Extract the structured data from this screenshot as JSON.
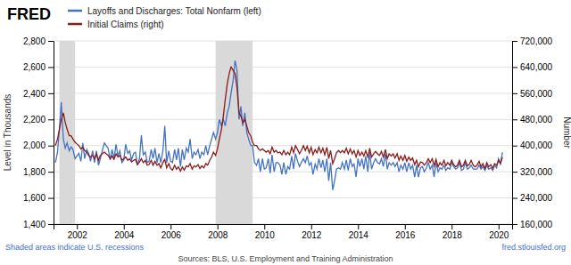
{
  "chart_data": {
    "type": "line",
    "title": "FRED",
    "ylabel": "Level in Thousands",
    "y2label": "Number",
    "xlim": [
      2001.0,
      2020.58
    ],
    "xticks": [
      2002,
      2004,
      2006,
      2008,
      2010,
      2012,
      2014,
      2016,
      2018,
      2020
    ],
    "ylim": [
      1400,
      2800
    ],
    "yticks": [
      {
        "value": 1400,
        "label": "1,400"
      },
      {
        "value": 1600,
        "label": "1,600"
      },
      {
        "value": 1800,
        "label": "1,800"
      },
      {
        "value": 2000,
        "label": "2,000"
      },
      {
        "value": 2200,
        "label": "2,200"
      },
      {
        "value": 2400,
        "label": "2,400"
      },
      {
        "value": 2600,
        "label": "2,600"
      },
      {
        "value": 2800,
        "label": "2,800"
      }
    ],
    "y2lim": [
      160000,
      720000
    ],
    "y2ticks": [
      {
        "value": 160000,
        "label": "160,000"
      },
      {
        "value": 240000,
        "label": "240,000"
      },
      {
        "value": 320000,
        "label": "320,000"
      },
      {
        "value": 400000,
        "label": "400,000"
      },
      {
        "value": 480000,
        "label": "480,000"
      },
      {
        "value": 560000,
        "label": "560,000"
      },
      {
        "value": 640000,
        "label": "640,000"
      },
      {
        "value": 720000,
        "label": "720,000"
      }
    ],
    "grid": true,
    "legend": "top-left",
    "shaded_periods": [
      [
        2001.25,
        2001.92
      ],
      [
        2007.92,
        2009.5
      ]
    ],
    "annotations": [
      "Shaded areas indicate U.S. recessions",
      "Sources: BLS, U.S. Employment and Training Administration",
      "fred.stlouisfed.org"
    ],
    "x": [
      2001.08,
      2001.17,
      2001.25,
      2001.33,
      2001.42,
      2001.5,
      2001.58,
      2001.67,
      2001.75,
      2001.83,
      2001.92,
      2002.0,
      2002.08,
      2002.17,
      2002.25,
      2002.33,
      2002.42,
      2002.5,
      2002.58,
      2002.67,
      2002.75,
      2002.83,
      2002.92,
      2003.0,
      2003.08,
      2003.17,
      2003.25,
      2003.33,
      2003.42,
      2003.5,
      2003.58,
      2003.67,
      2003.75,
      2003.83,
      2003.92,
      2004.0,
      2004.08,
      2004.17,
      2004.25,
      2004.33,
      2004.42,
      2004.5,
      2004.58,
      2004.67,
      2004.75,
      2004.83,
      2004.92,
      2005.0,
      2005.08,
      2005.17,
      2005.25,
      2005.33,
      2005.42,
      2005.5,
      2005.58,
      2005.67,
      2005.75,
      2005.83,
      2005.92,
      2006.0,
      2006.08,
      2006.17,
      2006.25,
      2006.33,
      2006.42,
      2006.5,
      2006.58,
      2006.67,
      2006.75,
      2006.83,
      2006.92,
      2007.0,
      2007.08,
      2007.17,
      2007.25,
      2007.33,
      2007.42,
      2007.5,
      2007.58,
      2007.67,
      2007.75,
      2007.83,
      2007.92,
      2008.0,
      2008.08,
      2008.17,
      2008.25,
      2008.33,
      2008.42,
      2008.5,
      2008.58,
      2008.67,
      2008.75,
      2008.83,
      2008.92,
      2009.0,
      2009.08,
      2009.17,
      2009.25,
      2009.33,
      2009.42,
      2009.5,
      2009.58,
      2009.67,
      2009.75,
      2009.83,
      2009.92,
      2010.0,
      2010.08,
      2010.17,
      2010.25,
      2010.33,
      2010.42,
      2010.5,
      2010.58,
      2010.67,
      2010.75,
      2010.83,
      2010.92,
      2011.0,
      2011.08,
      2011.17,
      2011.25,
      2011.33,
      2011.42,
      2011.5,
      2011.58,
      2011.67,
      2011.75,
      2011.83,
      2011.92,
      2012.0,
      2012.08,
      2012.17,
      2012.25,
      2012.33,
      2012.42,
      2012.5,
      2012.58,
      2012.67,
      2012.75,
      2012.83,
      2012.92,
      2013.0,
      2013.08,
      2013.17,
      2013.25,
      2013.33,
      2013.42,
      2013.5,
      2013.58,
      2013.67,
      2013.75,
      2013.83,
      2013.92,
      2014.0,
      2014.08,
      2014.17,
      2014.25,
      2014.33,
      2014.42,
      2014.5,
      2014.58,
      2014.67,
      2014.75,
      2014.83,
      2014.92,
      2015.0,
      2015.08,
      2015.17,
      2015.25,
      2015.33,
      2015.42,
      2015.5,
      2015.58,
      2015.67,
      2015.75,
      2015.83,
      2015.92,
      2016.0,
      2016.08,
      2016.17,
      2016.25,
      2016.33,
      2016.42,
      2016.5,
      2016.58,
      2016.67,
      2016.75,
      2016.83,
      2016.92,
      2017.0,
      2017.08,
      2017.17,
      2017.25,
      2017.33,
      2017.42,
      2017.5,
      2017.58,
      2017.67,
      2017.75,
      2017.83,
      2017.92,
      2018.0,
      2018.08,
      2018.17,
      2018.25,
      2018.33,
      2018.42,
      2018.5,
      2018.58,
      2018.67,
      2018.75,
      2018.83,
      2018.92,
      2019.0,
      2019.08,
      2019.17,
      2019.25,
      2019.33,
      2019.42,
      2019.5,
      2019.58,
      2019.67,
      2019.75,
      2019.83,
      2019.92,
      2020.0,
      2020.08,
      2020.17
    ],
    "series": [
      {
        "name": "Layoffs and Discharges: Total Nonfarm (left)",
        "color": "#4472c4",
        "values": [
          1870,
          1950,
          2120,
          2330,
          2050,
          1980,
          2020,
          1960,
          1990,
          1970,
          1900,
          1920,
          1940,
          1880,
          2020,
          1900,
          1970,
          1940,
          1880,
          1960,
          1870,
          1960,
          1850,
          1900,
          1960,
          2020,
          2000,
          1980,
          1890,
          1970,
          1900,
          2010,
          1920,
          1960,
          1870,
          1890,
          2010,
          1940,
          1960,
          1890,
          1940,
          1950,
          1850,
          1900,
          2080,
          1930,
          1950,
          1870,
          1880,
          1970,
          1900,
          1980,
          1870,
          1940,
          1870,
          1960,
          2150,
          1870,
          1960,
          1880,
          1870,
          1970,
          1890,
          1980,
          1840,
          1970,
          1890,
          1980,
          1950,
          2050,
          1900,
          1950,
          1930,
          1970,
          1900,
          1950,
          1930,
          2000,
          1930,
          2000,
          2050,
          2100,
          2050,
          2100,
          2200,
          2150,
          2200,
          2150,
          2250,
          2300,
          2400,
          2500,
          2650,
          2580,
          2200,
          2300,
          2150,
          2250,
          2100,
          2050,
          2000,
          2000,
          1870,
          1850,
          1900,
          1800,
          1900,
          1820,
          1830,
          1900,
          1790,
          1930,
          1800,
          1870,
          1870,
          1850,
          1780,
          1870,
          1780,
          1840,
          1820,
          1920,
          1820,
          1940,
          1880,
          1840,
          1870,
          1900,
          1870,
          1920,
          1850,
          1870,
          1780,
          1860,
          1820,
          1900,
          1830,
          1890,
          1800,
          1900,
          1730,
          1870,
          1660,
          1730,
          1820,
          1830,
          1820,
          1870,
          1820,
          1890,
          1810,
          1900,
          1840,
          1860,
          1760,
          1900,
          1840,
          1900,
          1820,
          1920,
          1800,
          1950,
          1820,
          1870,
          1900,
          1870,
          1860,
          1900,
          1840,
          1940,
          1820,
          1870,
          1850,
          1870,
          1840,
          1870,
          1800,
          1850,
          1820,
          1870,
          1800,
          1870,
          1820,
          1850,
          1760,
          1850,
          1760,
          1830,
          1840,
          1800,
          1830,
          1870,
          1820,
          1850,
          1760,
          1870,
          1800,
          1830,
          1820,
          1850,
          1810,
          1830,
          1820,
          1870,
          1840,
          1820,
          1830,
          1870,
          1810,
          1820,
          1870,
          1820,
          1830,
          1850,
          1820,
          1820,
          1820,
          1850,
          1820,
          1840,
          1810,
          1850,
          1820,
          1830,
          1810,
          1850,
          1830,
          1900,
          1860,
          1950
        ]
      },
      {
        "name": "Initial Claims (right)",
        "color": "#8b1a1a",
        "axis": "y2",
        "values": [
          400000,
          420000,
          450000,
          480000,
          500000,
          470000,
          450000,
          430000,
          430000,
          420000,
          410000,
          405000,
          400000,
          390000,
          395000,
          385000,
          380000,
          370000,
          365000,
          370000,
          360000,
          375000,
          355000,
          370000,
          375000,
          380000,
          375000,
          370000,
          360000,
          368000,
          358000,
          375000,
          365000,
          370000,
          355000,
          360000,
          365000,
          355000,
          360000,
          350000,
          355000,
          358000,
          342000,
          350000,
          360000,
          348000,
          355000,
          340000,
          342000,
          355000,
          340000,
          352000,
          340000,
          345000,
          332000,
          348000,
          358000,
          332000,
          345000,
          330000,
          325000,
          340000,
          328000,
          335000,
          322000,
          335000,
          325000,
          338000,
          335000,
          345000,
          328000,
          338000,
          335000,
          342000,
          330000,
          338000,
          332000,
          345000,
          340000,
          355000,
          365000,
          380000,
          370000,
          390000,
          420000,
          450000,
          490000,
          540000,
          590000,
          620000,
          640000,
          630000,
          620000,
          580000,
          500000,
          490000,
          470000,
          480000,
          460000,
          440000,
          430000,
          410000,
          400000,
          400000,
          390000,
          385000,
          390000,
          385000,
          380000,
          385000,
          375000,
          395000,
          380000,
          385000,
          378000,
          380000,
          372000,
          385000,
          372000,
          380000,
          372000,
          395000,
          378000,
          400000,
          388000,
          375000,
          385000,
          400000,
          385000,
          398000,
          378000,
          395000,
          372000,
          388000,
          378000,
          395000,
          378000,
          392000,
          372000,
          395000,
          360000,
          385000,
          345000,
          360000,
          378000,
          385000,
          378000,
          385000,
          378000,
          392000,
          375000,
          390000,
          375000,
          385000,
          365000,
          385000,
          370000,
          380000,
          368000,
          385000,
          365000,
          392000,
          365000,
          375000,
          382000,
          375000,
          370000,
          382000,
          365000,
          388000,
          360000,
          375000,
          368000,
          375000,
          362000,
          375000,
          355000,
          368000,
          355000,
          370000,
          352000,
          365000,
          355000,
          362000,
          342000,
          355000,
          335000,
          350000,
          348000,
          340000,
          348000,
          360000,
          348000,
          360000,
          338000,
          358000,
          335000,
          348000,
          340000,
          355000,
          338000,
          348000,
          340000,
          355000,
          342000,
          335000,
          340000,
          355000,
          335000,
          340000,
          355000,
          338000,
          342000,
          355000,
          340000,
          335000,
          340000,
          352000,
          335000,
          345000,
          330000,
          348000,
          335000,
          342000,
          330000,
          345000,
          340000,
          355000,
          345000,
          365000
        ]
      }
    ]
  }
}
